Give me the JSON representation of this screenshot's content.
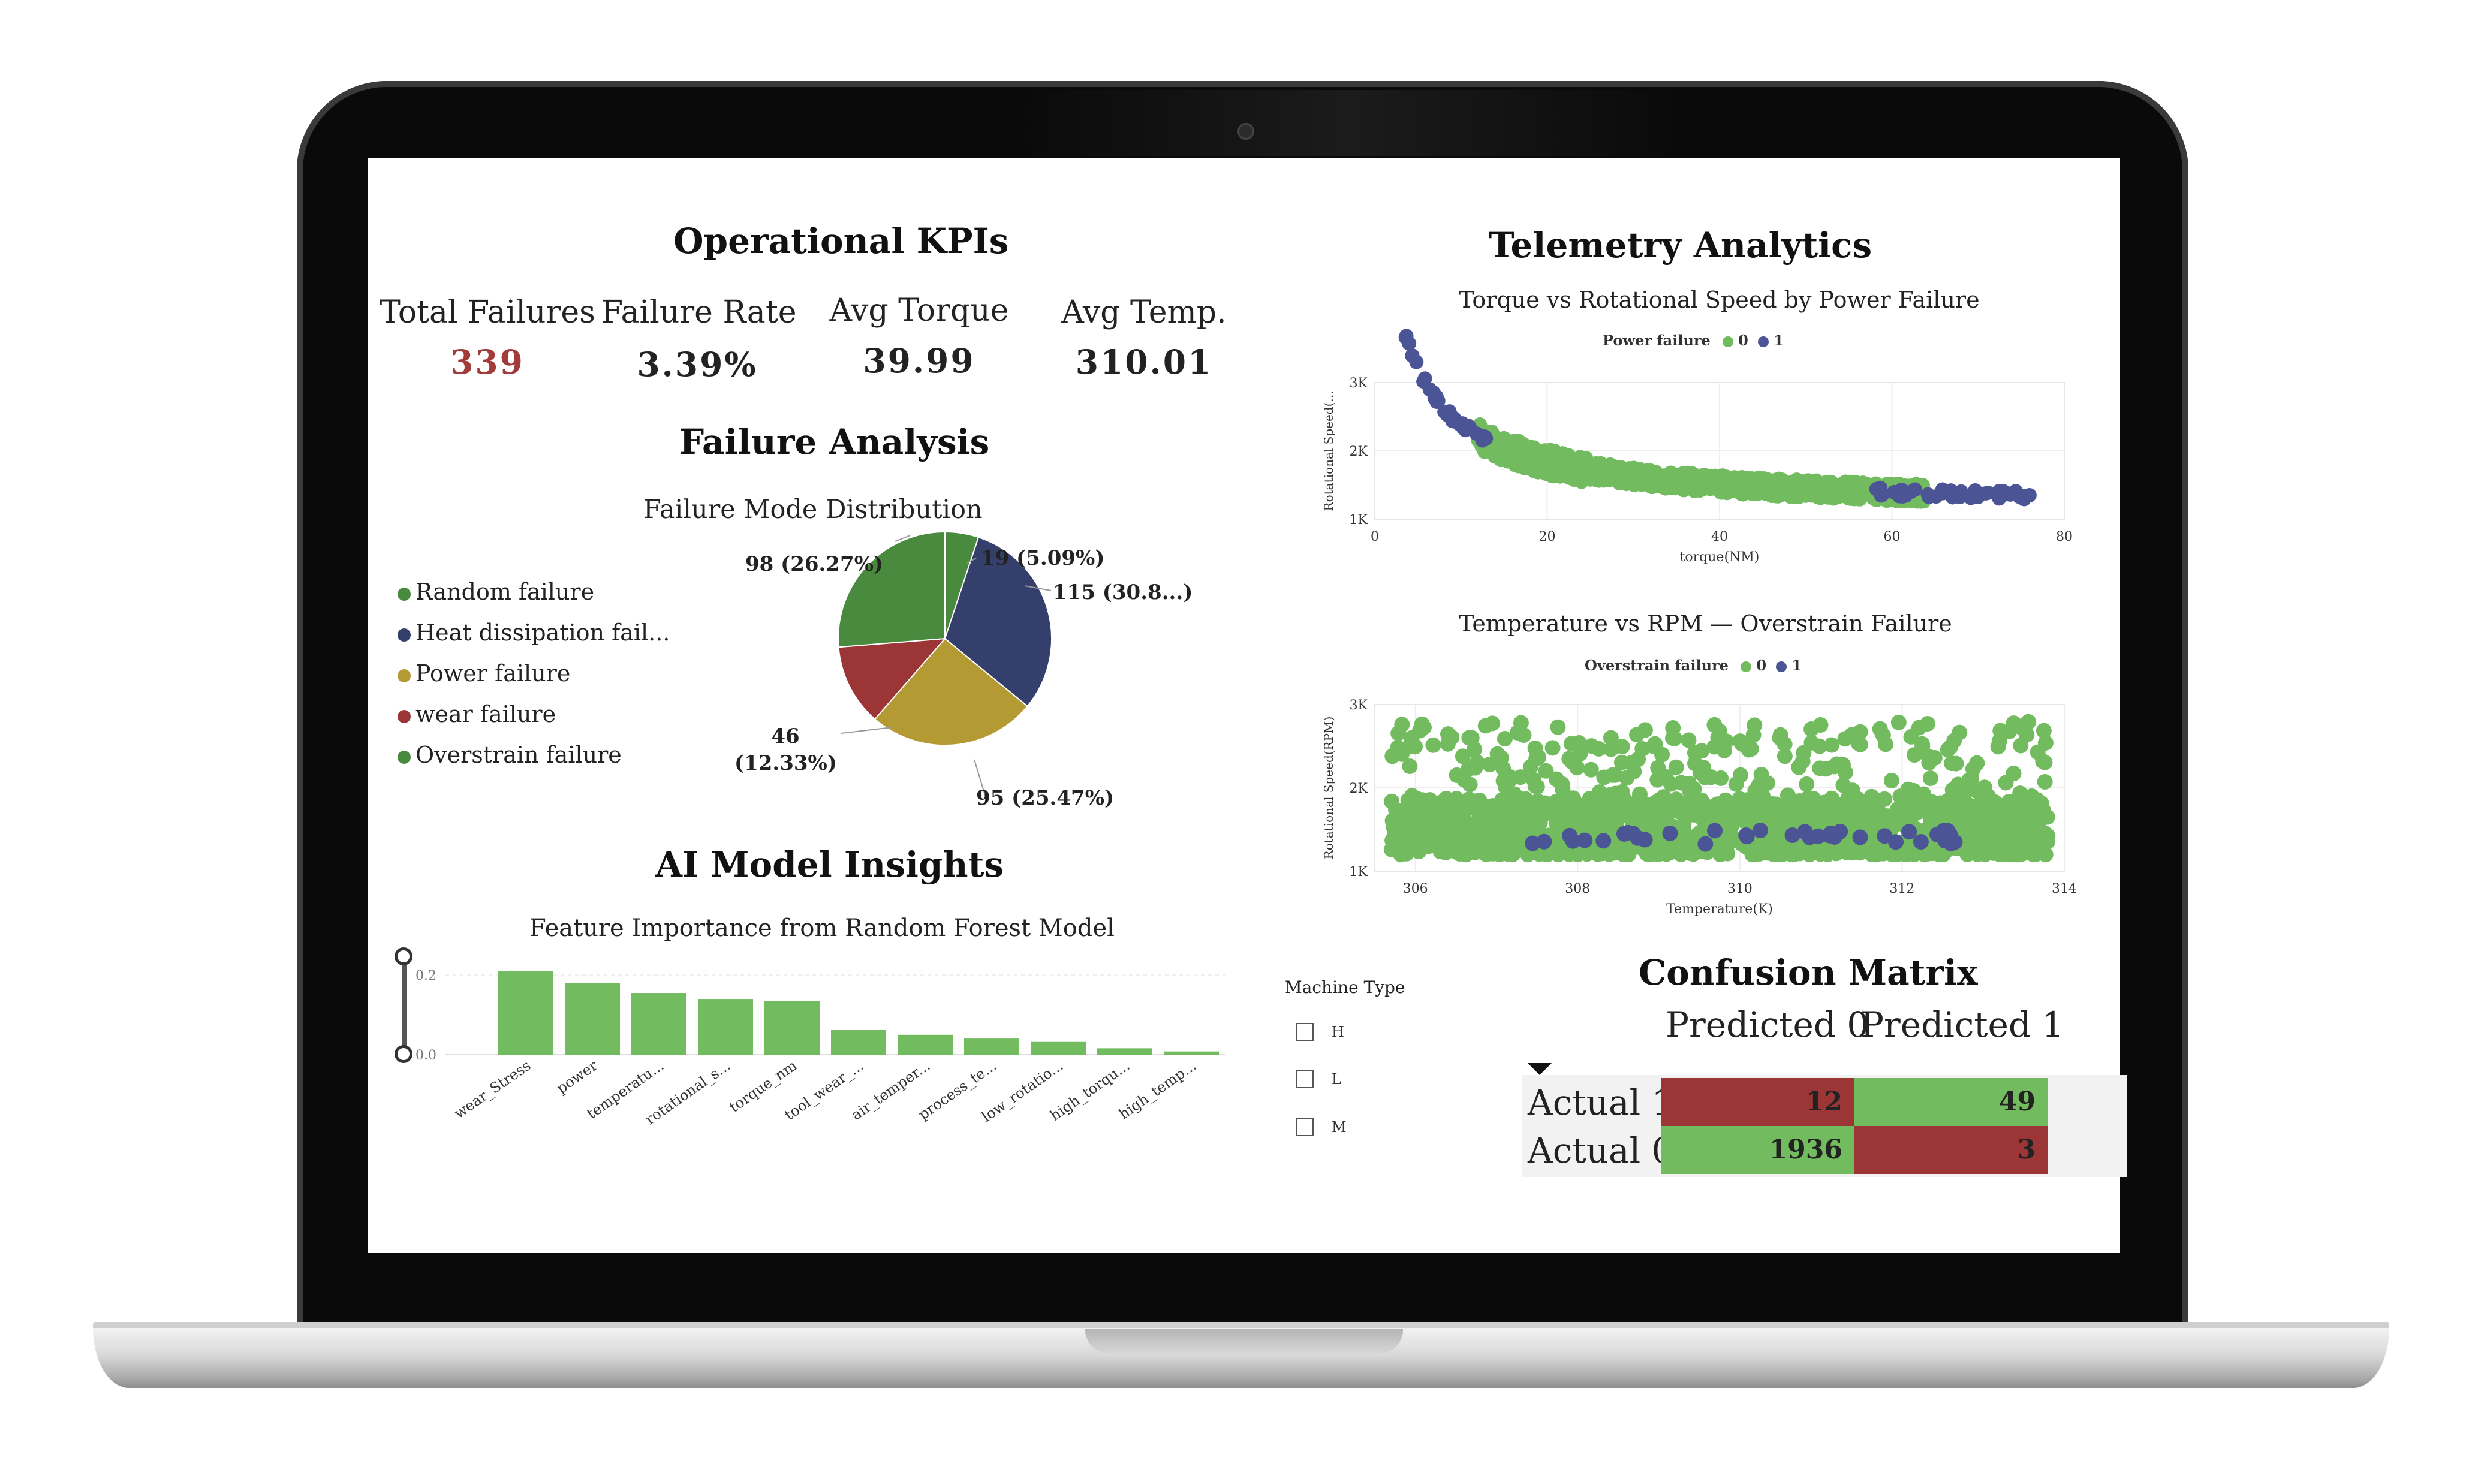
{
  "kpi": {
    "title": "Operational KPIs",
    "items": [
      {
        "label": "Total Failures",
        "value": "339",
        "color": "#a33b3b"
      },
      {
        "label": "Failure Rate",
        "value": "3.39%",
        "color": "#222222"
      },
      {
        "label": "Avg Torque",
        "value": "39.99",
        "color": "#222222"
      },
      {
        "label": "Avg Temp.",
        "value": "310.01",
        "color": "#222222"
      }
    ]
  },
  "failure_analysis": {
    "title": "Failure Analysis",
    "chart_title": "Failure Mode Distribution",
    "legend": [
      {
        "label": "Random failure",
        "color": "#4a8a3f"
      },
      {
        "label": "Heat dissipation fail...",
        "color": "#34406b"
      },
      {
        "label": "Power failure",
        "color": "#b39a33"
      },
      {
        "label": "wear failure",
        "color": "#9c3535"
      },
      {
        "label": "Overstrain failure",
        "color": "#4a8a3f"
      }
    ],
    "slice_labels": {
      "random": "98 (26.27%)",
      "heat": "115 (30.8...)",
      "power": "95 (25.47%)",
      "wear_line1": "46",
      "wear_line2": "(12.33%)",
      "overstrain": "19 (5.09%)"
    }
  },
  "ai_insights": {
    "title": "AI Model Insights",
    "chart_title": "Feature Importance from Random Forest Model"
  },
  "telemetry": {
    "title": "Telemetry Analytics",
    "chart1": {
      "title": "Torque vs Rotational Speed by Power Failure",
      "legend_title": "Power failure",
      "legend_items": [
        "0",
        "1"
      ],
      "xlabel": "torque(NM)",
      "ylabel": "Rotational Speed(...",
      "xticks": [
        "0",
        "20",
        "40",
        "60",
        "80"
      ],
      "yticks": [
        "3K",
        "2K",
        "1K"
      ]
    },
    "chart2": {
      "title": "Temperature vs RPM — Overstrain Failure",
      "legend_title": "Overstrain failure",
      "legend_items": [
        "0",
        "1"
      ],
      "xlabel": "Temperature(K)",
      "ylabel": "Rotational Speed(RPM)",
      "xticks": [
        "306",
        "308",
        "310",
        "312",
        "314"
      ],
      "yticks": [
        "3K",
        "2K",
        "1K"
      ]
    }
  },
  "machine_type": {
    "title": "Machine Type",
    "options": [
      "H",
      "L",
      "M"
    ]
  },
  "confusion_matrix": {
    "title": "Confusion Matrix",
    "col_headers": [
      "Predicted 0",
      "Predicted 1"
    ],
    "row_headers": [
      "Actual 1",
      "Actual 0"
    ],
    "cells": [
      [
        {
          "value": "12",
          "color": "#9c3535"
        },
        {
          "value": "49",
          "color": "#72bb5e"
        }
      ],
      [
        {
          "value": "1936",
          "color": "#72bb5e"
        },
        {
          "value": "3",
          "color": "#9c3535"
        }
      ]
    ]
  },
  "colors": {
    "green": "#72bb5e",
    "navy": "#4b5596",
    "red": "#9c3535",
    "gold": "#b39a33"
  },
  "chart_data": [
    {
      "type": "pie",
      "title": "Failure Mode Distribution",
      "labels": [
        "Random failure",
        "Heat dissipation failure",
        "Power failure",
        "wear failure",
        "Overstrain failure"
      ],
      "values": [
        98,
        115,
        95,
        46,
        19
      ],
      "percentages": [
        26.27,
        30.83,
        25.47,
        12.33,
        5.09
      ],
      "colors": [
        "#4a8a3f",
        "#34406b",
        "#b39a33",
        "#9c3535",
        "#4a8a3f"
      ],
      "legend": "left"
    },
    {
      "type": "bar",
      "title": "Feature Importance from Random Forest Model",
      "categories": [
        "wear_Stress",
        "power",
        "temperatu...",
        "rotational_s...",
        "torque_nm",
        "tool_wear_...",
        "air_temper...",
        "process_te...",
        "low_rotatio...",
        "high_torqu...",
        "high_temp..."
      ],
      "values": [
        0.21,
        0.18,
        0.155,
        0.14,
        0.135,
        0.062,
        0.05,
        0.042,
        0.032,
        0.016,
        0.008
      ],
      "yticks": [
        "0.2",
        "0.0"
      ],
      "ylim": [
        0,
        0.25
      ],
      "color": "#72bb5e"
    },
    {
      "type": "scatter",
      "title": "Torque vs Rotational Speed by Power Failure",
      "xlabel": "torque(NM)",
      "xlim": [
        0,
        80
      ],
      "ylim": [
        1000,
        3000
      ],
      "series": [
        {
          "name": "0",
          "color": "#72bb5e"
        },
        {
          "name": "1",
          "color": "#4b5596"
        }
      ]
    },
    {
      "type": "scatter",
      "title": "Temperature vs RPM — Overstrain Failure",
      "xlabel": "Temperature(K)",
      "ylabel": "Rotational Speed(RPM)",
      "xlim": [
        305.5,
        314
      ],
      "ylim": [
        1000,
        3000
      ],
      "series": [
        {
          "name": "0",
          "color": "#72bb5e"
        },
        {
          "name": "1",
          "color": "#4b5596"
        }
      ]
    }
  ]
}
